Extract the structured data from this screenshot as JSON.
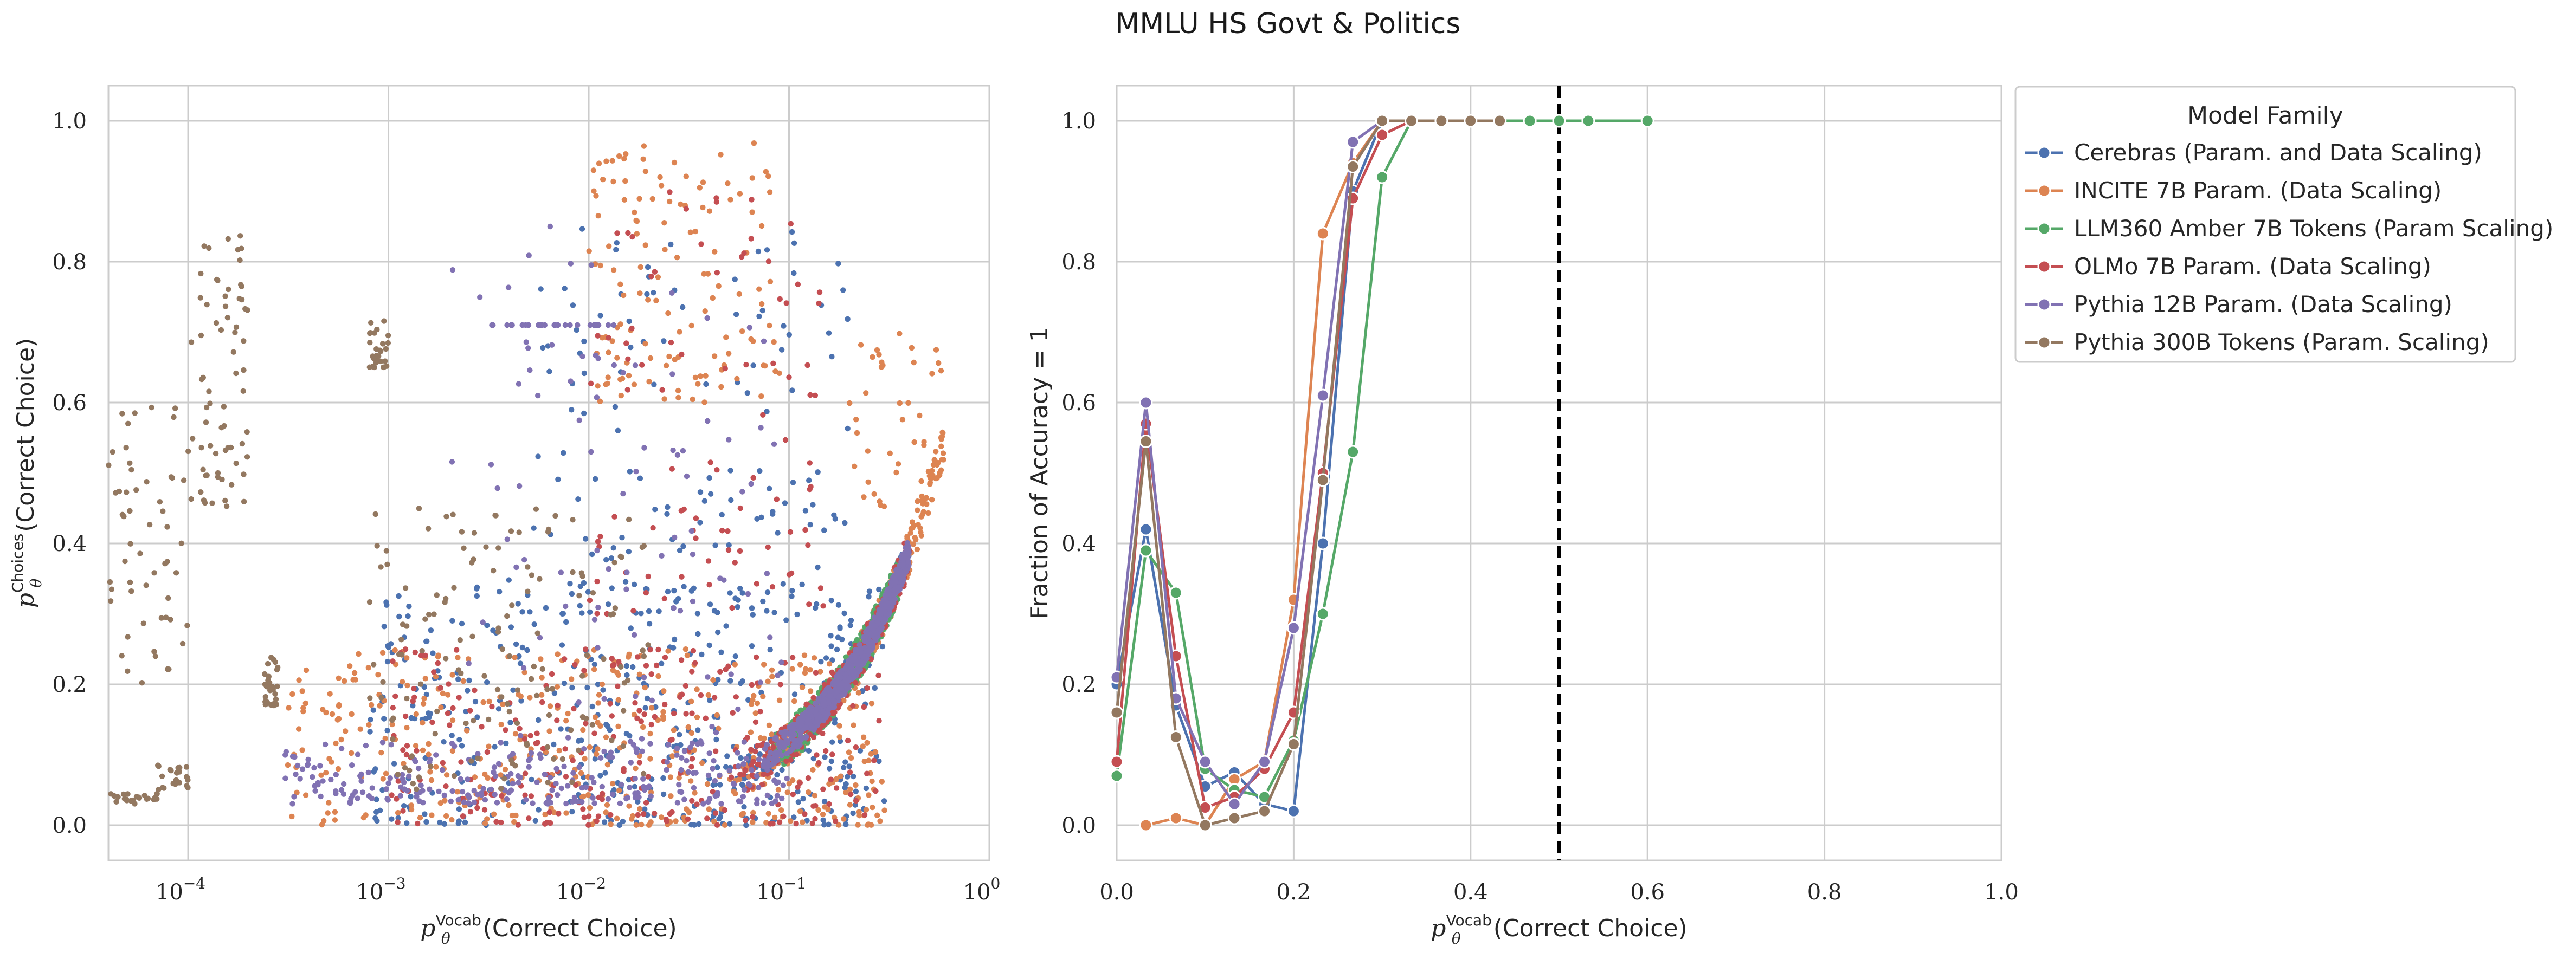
{
  "title": "MMLU HS Govt & Politics",
  "colors": {
    "Cerebras": "#4c72b0",
    "INCITE": "#dd8452",
    "LLM360": "#55a868",
    "OLMo": "#c44e52",
    "Pythia12B": "#8172b3",
    "Pythia300B": "#937860",
    "grid": "#cccccc",
    "dashed": "#000000"
  },
  "chart_data": [
    {
      "type": "scatter",
      "panel": "left",
      "xscale": "log",
      "xlim": [
        4e-05,
        1
      ],
      "ylim": [
        -0.05,
        1.05
      ],
      "xlabel_prefix": "p",
      "xlabel_super": "Vocab",
      "xlabel_sub": "θ",
      "xlabel_suffix": "(Correct Choice)",
      "ylabel_prefix": "p",
      "ylabel_super": "Choices",
      "ylabel_sub": "θ",
      "ylabel_suffix": "(Correct Choice)",
      "xtick_base": "10",
      "xticks": [
        {
          "value": 0.0001,
          "exp": "−4"
        },
        {
          "value": 0.001,
          "exp": "−3"
        },
        {
          "value": 0.01,
          "exp": "−2"
        },
        {
          "value": 0.1,
          "exp": "−1"
        },
        {
          "value": 1,
          "exp": "0"
        }
      ],
      "yticks": [
        "0.0",
        "0.2",
        "0.4",
        "0.6",
        "0.8",
        "1.0"
      ],
      "grid": true,
      "series": [
        {
          "color_key": "Cerebras",
          "clusters": [
            {
              "kind": "curve",
              "xmin": 0.05,
              "xmax": 0.4,
              "n": 280,
              "jitter": 0.025
            },
            {
              "kind": "band",
              "xmin": 0.0008,
              "xmax": 0.3,
              "ymin": 0.0,
              "ymax": 0.35,
              "n": 420
            },
            {
              "kind": "band",
              "xmin": 0.005,
              "xmax": 0.2,
              "ymin": 0.3,
              "ymax": 0.85,
              "n": 140
            }
          ]
        },
        {
          "color_key": "INCITE",
          "clusters": [
            {
              "kind": "curve",
              "xmin": 0.05,
              "xmax": 0.6,
              "n": 240,
              "jitter": 0.03
            },
            {
              "kind": "band",
              "xmin": 0.0003,
              "xmax": 0.3,
              "ymin": 0.0,
              "ymax": 0.25,
              "n": 420
            },
            {
              "kind": "band",
              "xmin": 0.01,
              "xmax": 0.09,
              "ymin": 0.6,
              "ymax": 0.97,
              "n": 130
            },
            {
              "kind": "band",
              "xmin": 0.2,
              "xmax": 0.6,
              "ymin": 0.45,
              "ymax": 0.7,
              "n": 40
            }
          ]
        },
        {
          "color_key": "LLM360",
          "clusters": [
            {
              "kind": "curve",
              "xmin": 0.08,
              "xmax": 0.35,
              "n": 420,
              "jitter": 0.03
            }
          ]
        },
        {
          "color_key": "OLMo",
          "clusters": [
            {
              "kind": "curve",
              "xmin": 0.05,
              "xmax": 0.4,
              "n": 260,
              "jitter": 0.03
            },
            {
              "kind": "band",
              "xmin": 0.001,
              "xmax": 0.3,
              "ymin": 0.0,
              "ymax": 0.25,
              "n": 260
            },
            {
              "kind": "band",
              "xmin": 0.01,
              "xmax": 0.15,
              "ymin": 0.3,
              "ymax": 0.9,
              "n": 90
            }
          ]
        },
        {
          "color_key": "Pythia12B",
          "clusters": [
            {
              "kind": "curve",
              "xmin": 0.07,
              "xmax": 0.4,
              "n": 650,
              "jitter": 0.02
            },
            {
              "kind": "band",
              "xmin": 0.0003,
              "xmax": 0.1,
              "ymin": 0.03,
              "ymax": 0.12,
              "n": 260
            },
            {
              "kind": "hline",
              "xmin": 0.003,
              "xmax": 0.015,
              "y": 0.71,
              "n": 28
            },
            {
              "kind": "band",
              "xmin": 0.002,
              "xmax": 0.1,
              "ymin": 0.12,
              "ymax": 0.85,
              "n": 90
            }
          ]
        },
        {
          "color_key": "Pythia300B",
          "clusters": [
            {
              "kind": "band",
              "xmin": 4e-05,
              "xmax": 7e-05,
              "ymin": 0.03,
              "ymax": 0.045,
              "n": 22
            },
            {
              "kind": "band",
              "xmin": 7e-05,
              "xmax": 0.0001,
              "ymin": 0.05,
              "ymax": 0.09,
              "n": 22
            },
            {
              "kind": "band",
              "xmin": 4e-05,
              "xmax": 0.0001,
              "ymin": 0.2,
              "ymax": 0.6,
              "n": 55
            },
            {
              "kind": "band",
              "xmin": 0.0001,
              "xmax": 0.0002,
              "ymin": 0.45,
              "ymax": 0.84,
              "n": 70
            },
            {
              "kind": "band",
              "xmin": 0.00024,
              "xmax": 0.00028,
              "ymin": 0.17,
              "ymax": 0.24,
              "n": 28
            },
            {
              "kind": "band",
              "xmin": 0.0008,
              "xmax": 0.001,
              "ymin": 0.65,
              "ymax": 0.72,
              "n": 28
            },
            {
              "kind": "band",
              "xmin": 0.0008,
              "xmax": 0.02,
              "ymin": 0.05,
              "ymax": 0.45,
              "n": 140
            }
          ]
        }
      ]
    },
    {
      "type": "line",
      "panel": "right",
      "xlim": [
        0.0,
        1.0
      ],
      "ylim": [
        -0.05,
        1.05
      ],
      "xlabel_prefix": "p",
      "xlabel_super": "Vocab",
      "xlabel_sub": "θ",
      "xlabel_suffix": "(Correct Choice)",
      "ylabel": "Fraction of Accuracy = 1",
      "xticks": [
        "0.0",
        "0.2",
        "0.4",
        "0.6",
        "0.8",
        "1.0"
      ],
      "yticks": [
        "0.0",
        "0.2",
        "0.4",
        "0.6",
        "0.8",
        "1.0"
      ],
      "grid": true,
      "vline": 0.5,
      "legend_title": "Model Family",
      "legend_position": "outside-upper-right",
      "series": [
        {
          "name": "Cerebras (Param. and Data Scaling)",
          "color_key": "Cerebras",
          "x": [
            0.0,
            0.033,
            0.067,
            0.1,
            0.133,
            0.167,
            0.2,
            0.233,
            0.267,
            0.3,
            0.333,
            0.367,
            0.4,
            0.433,
            0.467,
            0.5
          ],
          "y": [
            0.2,
            0.42,
            0.17,
            0.055,
            0.075,
            0.03,
            0.02,
            0.4,
            0.9,
            1.0,
            1.0,
            1.0,
            1.0,
            1.0,
            1.0,
            1.0
          ]
        },
        {
          "name": "INCITE 7B Param. (Data Scaling)",
          "color_key": "INCITE",
          "x": [
            0.033,
            0.067,
            0.1,
            0.133,
            0.167,
            0.2,
            0.233,
            0.267,
            0.3,
            0.333,
            0.367,
            0.4,
            0.433
          ],
          "y": [
            0.0,
            0.01,
            0.0,
            0.065,
            0.09,
            0.32,
            0.84,
            0.94,
            1.0,
            1.0,
            1.0,
            1.0,
            1.0
          ]
        },
        {
          "name": "LLM360 Amber 7B Tokens (Param Scaling)",
          "color_key": "LLM360",
          "x": [
            0.0,
            0.033,
            0.067,
            0.1,
            0.133,
            0.167,
            0.2,
            0.233,
            0.267,
            0.3,
            0.333,
            0.367,
            0.4,
            0.433,
            0.467,
            0.5,
            0.533,
            0.6
          ],
          "y": [
            0.07,
            0.39,
            0.33,
            0.08,
            0.05,
            0.04,
            0.12,
            0.3,
            0.53,
            0.92,
            1.0,
            1.0,
            1.0,
            1.0,
            1.0,
            1.0,
            1.0,
            1.0
          ]
        },
        {
          "name": "OLMo 7B Param. (Data Scaling)",
          "color_key": "OLMo",
          "x": [
            0.0,
            0.033,
            0.067,
            0.1,
            0.133,
            0.167,
            0.2,
            0.233,
            0.267,
            0.3,
            0.333,
            0.367,
            0.4
          ],
          "y": [
            0.09,
            0.57,
            0.24,
            0.025,
            0.04,
            0.08,
            0.16,
            0.5,
            0.89,
            0.98,
            1.0,
            1.0,
            1.0
          ]
        },
        {
          "name": "Pythia 12B Param. (Data Scaling)",
          "color_key": "Pythia12B",
          "x": [
            0.0,
            0.033,
            0.067,
            0.1,
            0.133,
            0.167,
            0.2,
            0.233,
            0.267,
            0.3,
            0.333,
            0.367,
            0.4
          ],
          "y": [
            0.21,
            0.6,
            0.18,
            0.09,
            0.03,
            0.09,
            0.28,
            0.61,
            0.97,
            1.0,
            1.0,
            1.0,
            1.0
          ]
        },
        {
          "name": "Pythia 300B Tokens (Param. Scaling)",
          "color_key": "Pythia300B",
          "x": [
            0.0,
            0.033,
            0.067,
            0.1,
            0.133,
            0.167,
            0.2,
            0.233,
            0.267,
            0.3,
            0.333,
            0.367,
            0.4,
            0.433
          ],
          "y": [
            0.16,
            0.545,
            0.125,
            0.0,
            0.01,
            0.02,
            0.115,
            0.49,
            0.935,
            1.0,
            1.0,
            1.0,
            1.0,
            1.0
          ]
        }
      ]
    }
  ]
}
